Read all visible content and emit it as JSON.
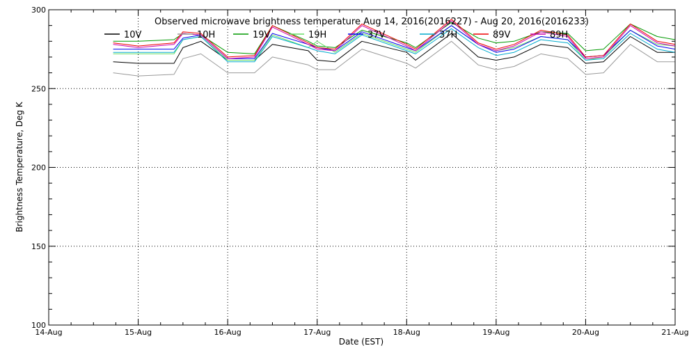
{
  "chart_data": {
    "type": "line",
    "title": "Observed microwave brightness temperature Aug 14, 2016(2016227) - Aug 20, 2016(2016233)",
    "xlabel": "Date (EST)",
    "ylabel": "Brightness Temperature, Deg K",
    "xlim": [
      0,
      7
    ],
    "ylim": [
      100,
      300
    ],
    "x_ticks": [
      {
        "value": 0,
        "label": "14-Aug"
      },
      {
        "value": 1,
        "label": "15-Aug"
      },
      {
        "value": 2,
        "label": "16-Aug"
      },
      {
        "value": 3,
        "label": "17-Aug"
      },
      {
        "value": 4,
        "label": "18-Aug"
      },
      {
        "value": 5,
        "label": "19-Aug"
      },
      {
        "value": 6,
        "label": "20-Aug"
      },
      {
        "value": 7,
        "label": "21-Aug"
      }
    ],
    "y_ticks": [
      {
        "value": 100,
        "label": "100"
      },
      {
        "value": 150,
        "label": "150"
      },
      {
        "value": 200,
        "label": "200"
      },
      {
        "value": 250,
        "label": "250"
      },
      {
        "value": 300,
        "label": "300"
      }
    ],
    "grid": true,
    "legend_position": "top",
    "x": [
      0.72,
      1.0,
      1.4,
      1.5,
      1.7,
      2.0,
      2.3,
      2.5,
      2.9,
      3.0,
      3.2,
      3.5,
      4.0,
      4.1,
      4.5,
      4.8,
      5.0,
      5.2,
      5.5,
      5.8,
      6.0,
      6.2,
      6.5,
      6.8,
      7.0
    ],
    "series": [
      {
        "name": "10V",
        "color": "#000000",
        "values": [
          267,
          266,
          266,
          276,
          280,
          268,
          268,
          278,
          274,
          268,
          267,
          280,
          273,
          268,
          285,
          270,
          268,
          270,
          278,
          276,
          266,
          267,
          283,
          273,
          273
        ]
      },
      {
        "name": "10H",
        "color": "#999999",
        "values": [
          260,
          258,
          259,
          269,
          272,
          260,
          260,
          270,
          265,
          262,
          262,
          275,
          266,
          263,
          280,
          265,
          262,
          264,
          272,
          269,
          259,
          260,
          278,
          267,
          267
        ]
      },
      {
        "name": "19V",
        "color": "#009900",
        "values": [
          280,
          280,
          281,
          285,
          284,
          273,
          272,
          290,
          280,
          277,
          276,
          287,
          279,
          276,
          292,
          282,
          279,
          280,
          286,
          285,
          274,
          275,
          291,
          283,
          281
        ]
      },
      {
        "name": "19H",
        "color": "#66dd66",
        "values": [
          272,
          272,
          272,
          281,
          283,
          268,
          268,
          284,
          276,
          280,
          273,
          285,
          275,
          273,
          290,
          278,
          274,
          276,
          283,
          281,
          268,
          270,
          287,
          278,
          277
        ]
      },
      {
        "name": "37V",
        "color": "#0000ee",
        "values": [
          275,
          275,
          275,
          282,
          284,
          269,
          269,
          285,
          278,
          276,
          274,
          286,
          276,
          274,
          290,
          278,
          273,
          275,
          283,
          281,
          270,
          271,
          287,
          277,
          275
        ]
      },
      {
        "name": "37H",
        "color": "#00aacc",
        "values": [
          273,
          273,
          273,
          281,
          283,
          267,
          267,
          283,
          276,
          274,
          272,
          284,
          274,
          272,
          288,
          276,
          271,
          273,
          281,
          279,
          268,
          269,
          285,
          275,
          273
        ]
      },
      {
        "name": "89V",
        "color": "#ee0000",
        "values": [
          279,
          277,
          279,
          286,
          285,
          270,
          271,
          290,
          279,
          276,
          275,
          291,
          278,
          275,
          294,
          279,
          275,
          278,
          287,
          284,
          270,
          271,
          291,
          280,
          278
        ]
      },
      {
        "name": "89H",
        "color": "#cc00aa",
        "values": [
          278,
          276,
          278,
          285,
          284,
          269,
          270,
          289,
          278,
          275,
          274,
          290,
          277,
          274,
          293,
          278,
          274,
          277,
          286,
          283,
          269,
          270,
          290,
          279,
          277
        ]
      }
    ]
  }
}
